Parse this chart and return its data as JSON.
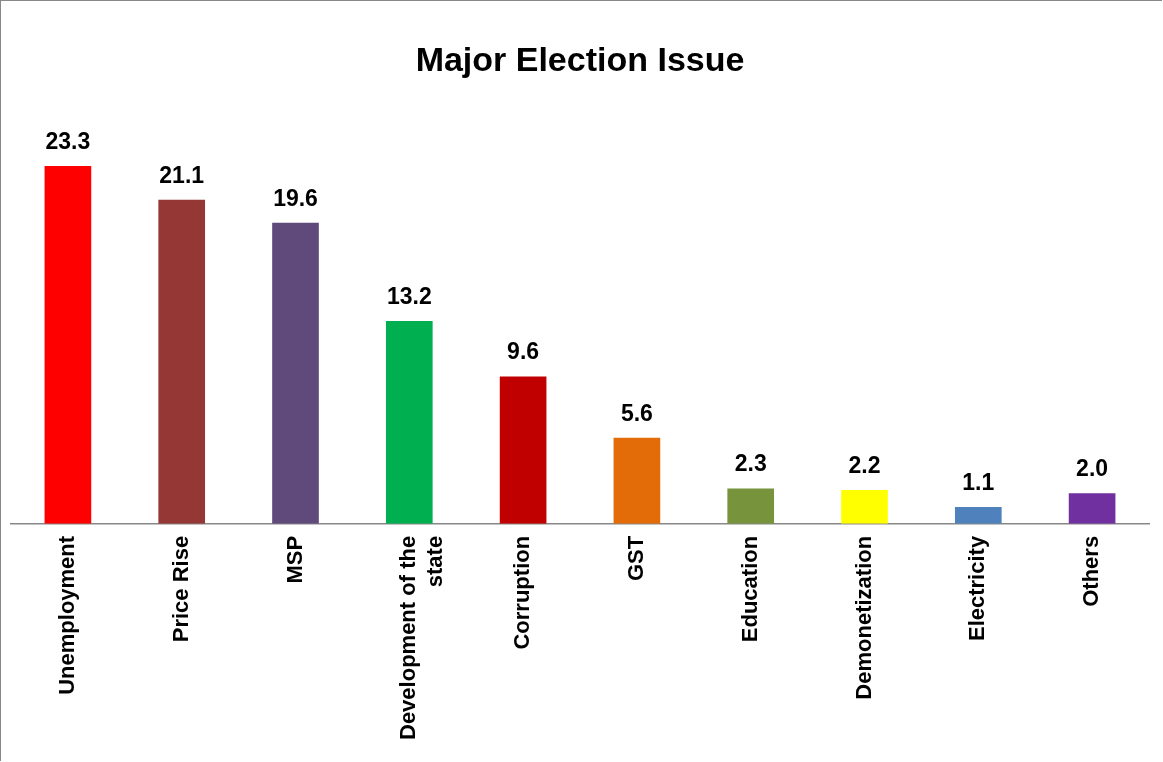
{
  "chart_data": {
    "type": "bar",
    "title": "Major Election Issue",
    "categories": [
      "Unemployment",
      "Price Rise",
      "MSP",
      "Development of the state",
      "Corruption",
      "GST",
      "Education",
      "Demonetization",
      "Electricity",
      "Others"
    ],
    "values": [
      23.3,
      21.1,
      19.6,
      13.2,
      9.6,
      5.6,
      2.3,
      2.2,
      1.1,
      2.0
    ],
    "colors": [
      "#ff0000",
      "#953735",
      "#604a7b",
      "#00b050",
      "#c00000",
      "#e36c09",
      "#77933c",
      "#ffff00",
      "#4f81bd",
      "#7030a0"
    ],
    "value_labels": [
      "23.3",
      "21.1",
      "19.6",
      "13.2",
      "9.6",
      "5.6",
      "2.3",
      "2.2",
      "1.1",
      "2.0"
    ],
    "grid": false,
    "legend": false
  }
}
